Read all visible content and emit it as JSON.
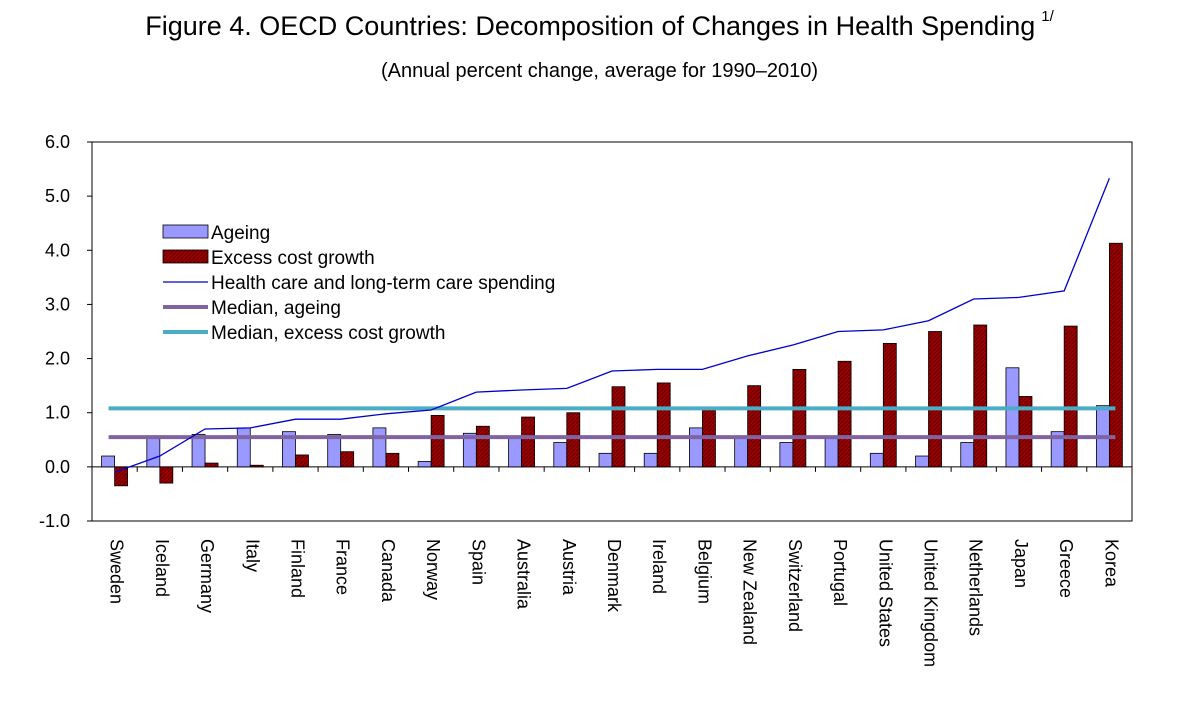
{
  "title": "Figure 4. OECD Countries: Decomposition of Changes in Health Spending",
  "title_note": "1/",
  "subtitle": "(Annual percent change, average for 1990–2010)",
  "colors": {
    "ageing": "#9999ff",
    "excess": "#990000",
    "spending_line": "#0000cc",
    "median_ageing": "#8064a2",
    "median_excess": "#4bacc6"
  },
  "chart_data": {
    "type": "bar",
    "categories": [
      "Sweden",
      "Iceland",
      "Germany",
      "Italy",
      "Finland",
      "France",
      "Canada",
      "Norway",
      "Spain",
      "Australia",
      "Austria",
      "Denmark",
      "Ireland",
      "Belgium",
      "New Zealand",
      "Switzerland",
      "Portugal",
      "United States",
      "United Kingdom",
      "Netherlands",
      "Japan",
      "Greece",
      "Korea"
    ],
    "series": [
      {
        "name": "Ageing",
        "type": "bar",
        "values": [
          0.2,
          0.55,
          0.6,
          0.72,
          0.65,
          0.6,
          0.72,
          0.1,
          0.62,
          0.55,
          0.45,
          0.25,
          0.25,
          0.72,
          0.55,
          0.45,
          0.55,
          0.25,
          0.2,
          0.45,
          1.83,
          0.65,
          1.13
        ]
      },
      {
        "name": "Excess cost growth",
        "type": "bar",
        "values": [
          -0.35,
          -0.3,
          0.07,
          0.03,
          0.22,
          0.28,
          0.25,
          0.95,
          0.75,
          0.92,
          1.0,
          1.48,
          1.55,
          1.05,
          1.5,
          1.8,
          1.95,
          2.28,
          2.5,
          2.62,
          1.3,
          2.6,
          4.13
        ]
      },
      {
        "name": "Health care and long-term care spending",
        "type": "line",
        "values": [
          -0.1,
          0.2,
          0.7,
          0.72,
          0.88,
          0.88,
          0.98,
          1.05,
          1.38,
          1.42,
          1.45,
          1.77,
          1.8,
          1.8,
          2.05,
          2.25,
          2.5,
          2.53,
          2.7,
          3.1,
          3.13,
          3.25,
          5.33
        ]
      },
      {
        "name": "Median, ageing",
        "type": "hline",
        "value": 0.55
      },
      {
        "name": "Median, excess cost growth",
        "type": "hline",
        "value": 1.08
      }
    ],
    "ylim": [
      -1.0,
      6.0
    ],
    "yticks": [
      "6.0",
      "5.0",
      "4.0",
      "3.0",
      "2.0",
      "1.0",
      "0.0",
      "-1.0"
    ],
    "ytick_values": [
      6,
      5,
      4,
      3,
      2,
      1,
      0,
      -1
    ],
    "xlabel": "",
    "ylabel": "",
    "grid": false,
    "legend_position": "top-left"
  }
}
